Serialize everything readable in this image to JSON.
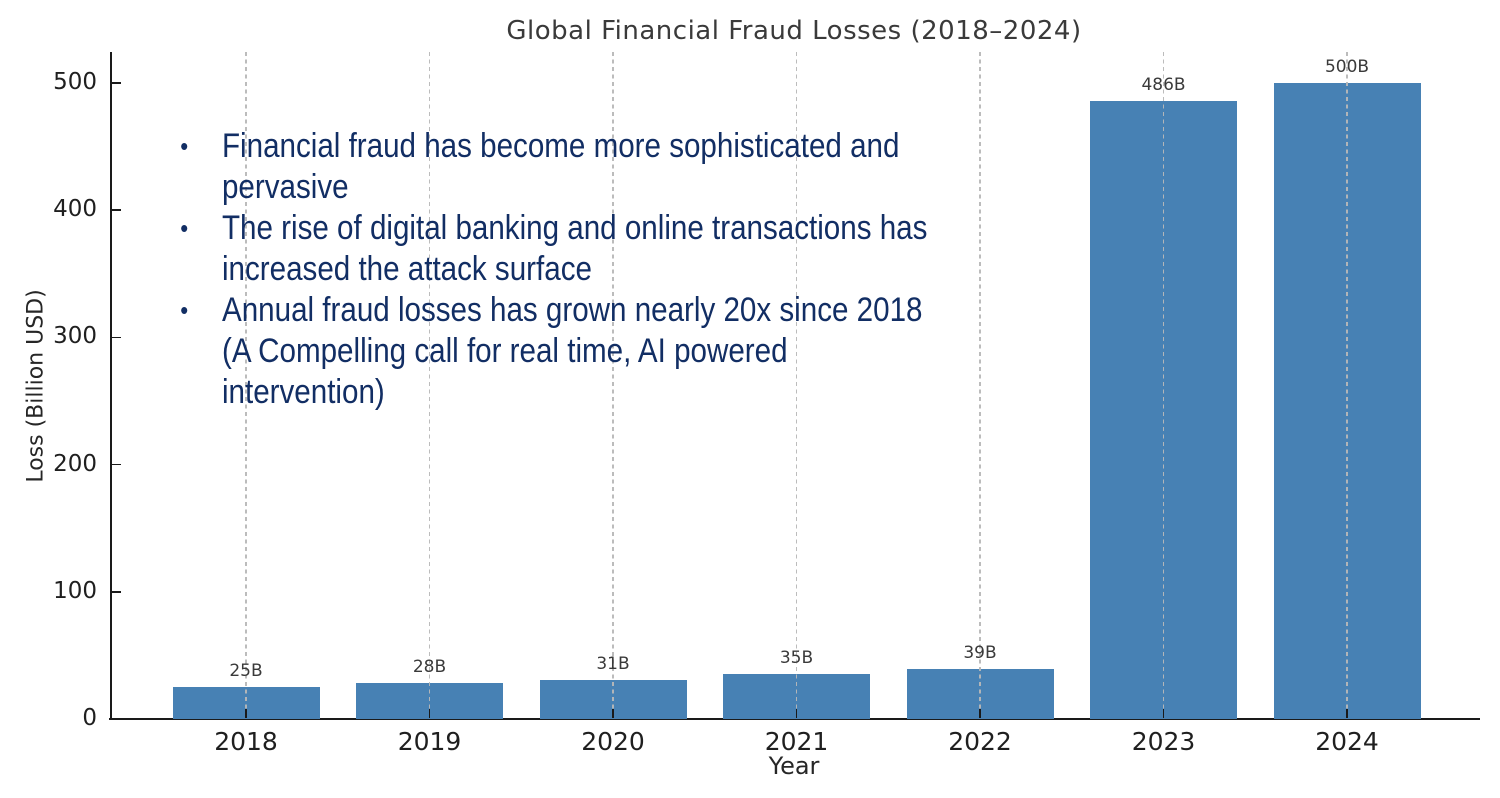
{
  "chart_data": {
    "type": "bar",
    "title": "Global Financial Fraud Losses (2018–2024)",
    "xlabel": "Year",
    "ylabel": "Loss (Billion USD)",
    "categories": [
      "2018",
      "2019",
      "2020",
      "2021",
      "2022",
      "2023",
      "2024"
    ],
    "values": [
      25,
      28,
      31,
      35,
      39,
      486,
      500
    ],
    "bar_labels": [
      "25B",
      "28B",
      "31B",
      "35B",
      "39B",
      "486B",
      "500B"
    ],
    "yticks": [
      0,
      100,
      200,
      300,
      400,
      500
    ],
    "ylim": [
      0,
      524
    ],
    "grid": "vertical-dashed",
    "legend": "none",
    "bar_color": "#4781b4",
    "grid_color": "#b8b8b8",
    "axis_color": "#1a1a1a"
  },
  "annotation": {
    "text_color": "#122e64",
    "bullet_char": "•",
    "bullets": [
      {
        "lines": [
          "Financial fraud has become more sophisticated and",
          "pervasive"
        ]
      },
      {
        "lines": [
          "The rise of digital banking and online transactions has",
          "increased the attack surface"
        ]
      },
      {
        "lines": [
          "Annual fraud losses has grown nearly 20x since 2018",
          "(A Compelling call for real time, AI powered",
          "intervention)"
        ]
      }
    ]
  }
}
